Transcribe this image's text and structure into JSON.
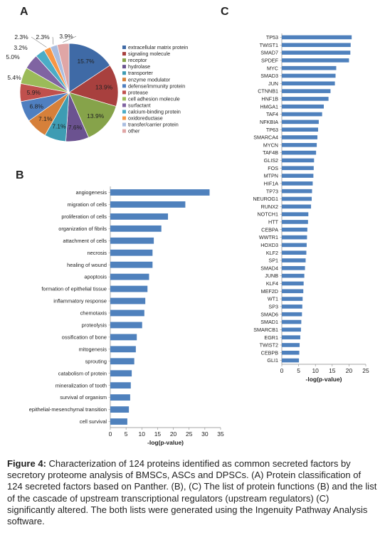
{
  "panels": {
    "a": "A",
    "b": "B",
    "c": "C"
  },
  "caption": {
    "label": "Figure 4:",
    "text": " Characterization of 124 proteins identified as common secreted factors by secretory proteome analysis of BMSCs, ASCs and DPSCs. (A) Protein classification of 124 secreted factors based on Panther. (B), (C) The list of protein functions (B) and the list of the cascade of upstream transcriptional regulators (upstream regulators) (C) significantly altered. The both lists were generated using the Ingenuity Pathway Analysis software."
  },
  "chart_data": [
    {
      "type": "pie",
      "panel": "A",
      "title": "",
      "slices": [
        {
          "label": "extracellular matrix protein",
          "value": 15.7,
          "display": "15.7%",
          "color": "#3f6aa6"
        },
        {
          "label": "signaling molecule",
          "value": 13.9,
          "display": "13.9%",
          "color": "#a8403e"
        },
        {
          "label": "receptor",
          "value": 13.9,
          "display": "13.9%",
          "color": "#86a34a"
        },
        {
          "label": "hydrolase",
          "value": 7.6,
          "display": "7.6%",
          "color": "#6b5290"
        },
        {
          "label": "transporter",
          "value": 7.1,
          "display": "7.1%",
          "color": "#3e9cb3"
        },
        {
          "label": "enzyme modulator",
          "value": 7.1,
          "display": "7.1%",
          "color": "#d6803a"
        },
        {
          "label": "defense/immunity protein",
          "value": 6.8,
          "display": "6.8%",
          "color": "#4f7fc0"
        },
        {
          "label": "protease",
          "value": 5.9,
          "display": "5.9%",
          "color": "#c0504d"
        },
        {
          "label": "cell adhesion molecule",
          "value": 5.4,
          "display": "5.4%",
          "color": "#9bbb59"
        },
        {
          "label": "surfactant",
          "value": 5.0,
          "display": "5.0%",
          "color": "#8064a2"
        },
        {
          "label": "calcium-binding protein",
          "value": 3.2,
          "display": "3.2%",
          "color": "#4bacc6"
        },
        {
          "label": "oxidoreductase",
          "value": 2.3,
          "display": "2.3%",
          "color": "#f79646"
        },
        {
          "label": "transfer/carrier protein",
          "value": 2.3,
          "display": "2.3%",
          "color": "#a9bde0"
        },
        {
          "label": "other",
          "value": 3.9,
          "display": "3.9%",
          "color": "#e0a6a6"
        }
      ]
    },
    {
      "type": "bar",
      "orientation": "horizontal",
      "panel": "B",
      "categories": [
        "angiogenesis",
        "migration of cells",
        "proliferation of cells",
        "organization of fibrils",
        "attachment of cells",
        "necrosis",
        "healing of wound",
        "apoptosis",
        "formation of epithelial tissue",
        "inflammatory response",
        "chemotaxis",
        "proteolysis",
        "ossification of bone",
        "mitogenesis",
        "sprouting",
        "catabolism of protein",
        "mineralization of tooth",
        "survival of organism",
        "epithelial-mesenchymal transition",
        "cell survival"
      ],
      "values": [
        31.5,
        23.8,
        18.3,
        16.2,
        13.8,
        13.4,
        13.4,
        12.3,
        11.8,
        11.1,
        10.8,
        10.1,
        8.4,
        8.1,
        7.6,
        6.8,
        6.5,
        6.3,
        5.9,
        5.4
      ],
      "xlabel": "-log(p-value)",
      "xlim": [
        0,
        35
      ],
      "xticks": [
        0,
        5,
        10,
        15,
        20,
        25,
        30,
        35
      ],
      "color": "#4f81bd"
    },
    {
      "type": "bar",
      "orientation": "horizontal",
      "panel": "C",
      "categories": [
        "TP53",
        "TWIST1",
        "SMAD7",
        "SPDEF",
        "MYC",
        "SMAD3",
        "JUN",
        "CTNNB1",
        "HNF1B",
        "HMGA1",
        "TAF4",
        "NFKBIA",
        "TP63",
        "SMARCA4",
        "MYCN",
        "TAF4B",
        "GLIS2",
        "FOS",
        "MTPN",
        "HIF1A",
        "TP73",
        "NEUROG1",
        "RUNX2",
        "NOTCH1",
        "HTT",
        "CEBPA",
        "WWTR1",
        "HOXD3",
        "KLF2",
        "SP1",
        "SMAD4",
        "JUNB",
        "KLF4",
        "MEF2D",
        "WT1",
        "SP3",
        "SMAD6",
        "SMAD1",
        "SMARCB1",
        "EGR1",
        "TWIST2",
        "CEBPB",
        "GLI1"
      ],
      "values": [
        20.8,
        20.5,
        20.4,
        20.0,
        16.2,
        16.0,
        15.8,
        14.5,
        13.9,
        12.5,
        12.0,
        11.0,
        10.8,
        10.6,
        10.4,
        10.2,
        9.6,
        9.5,
        9.4,
        9.2,
        9.0,
        8.9,
        8.7,
        7.9,
        7.8,
        7.6,
        7.5,
        7.4,
        7.3,
        7.1,
        6.9,
        6.7,
        6.5,
        6.4,
        6.2,
        6.1,
        6.0,
        5.8,
        5.7,
        5.5,
        5.3,
        5.2,
        5.1
      ],
      "xlabel": "-log(p-value)",
      "xlim": [
        0,
        25
      ],
      "xticks": [
        0,
        5,
        10,
        15,
        20,
        25
      ],
      "color": "#4f81bd"
    }
  ]
}
